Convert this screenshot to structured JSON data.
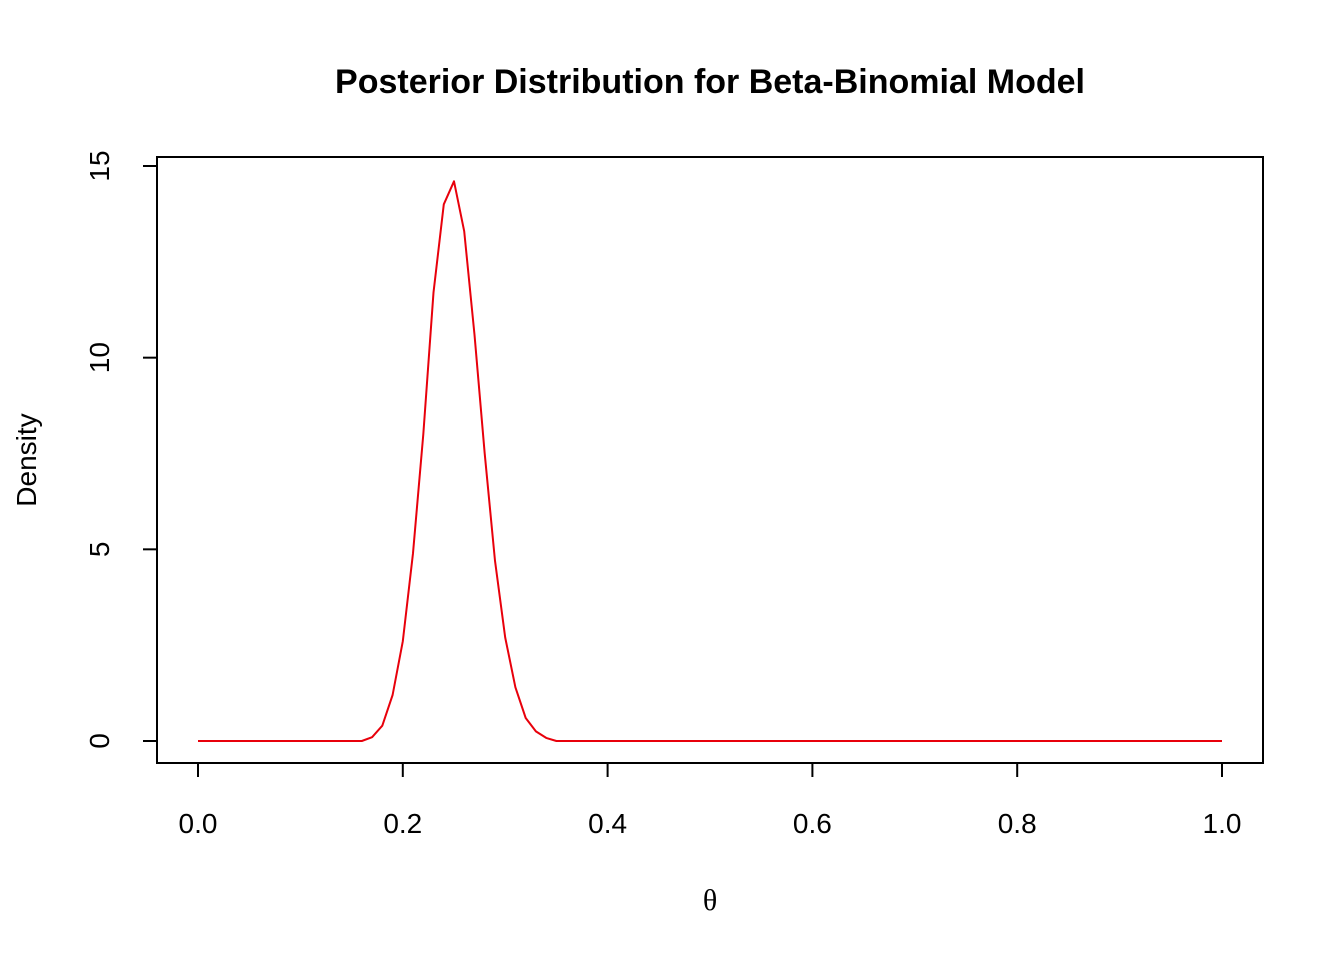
{
  "chart_data": {
    "type": "line",
    "title": "Posterior Distribution for Beta-Binomial Model",
    "xlabel": "θ",
    "ylabel": "Density",
    "xlim": [
      0,
      1
    ],
    "ylim": [
      0,
      15
    ],
    "x_ticks": [
      0.0,
      0.2,
      0.4,
      0.6,
      0.8,
      1.0
    ],
    "x_tick_labels": [
      "0.0",
      "0.2",
      "0.4",
      "0.6",
      "0.8",
      "1.0"
    ],
    "y_ticks": [
      0,
      5,
      10,
      15
    ],
    "y_tick_labels": [
      "0",
      "5",
      "10",
      "15"
    ],
    "grid": false,
    "series_color": "#e8000b",
    "series": [
      {
        "x": [
          0.0,
          0.16,
          0.17,
          0.18,
          0.19,
          0.2,
          0.21,
          0.22,
          0.23,
          0.24,
          0.25,
          0.26,
          0.27,
          0.28,
          0.29,
          0.3,
          0.31,
          0.32,
          0.33,
          0.34,
          0.35,
          1.0
        ],
        "y": [
          0.0,
          0.0,
          0.1,
          0.4,
          1.2,
          2.6,
          4.9,
          8.0,
          11.7,
          14.0,
          14.6,
          13.3,
          10.6,
          7.5,
          4.7,
          2.7,
          1.4,
          0.6,
          0.25,
          0.08,
          0.0,
          0.0
        ]
      }
    ]
  }
}
